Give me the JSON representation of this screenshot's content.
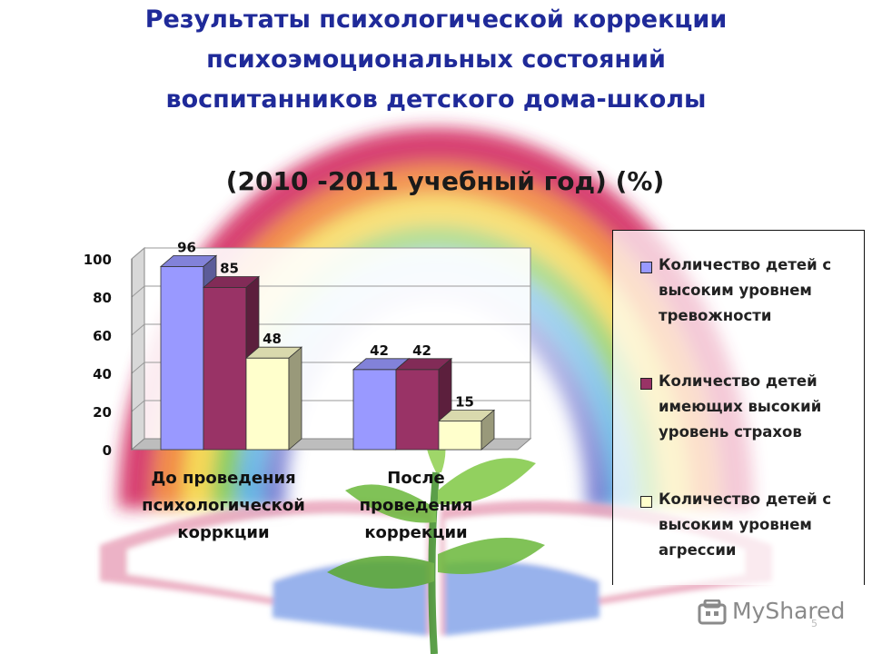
{
  "title_lines": [
    "Результаты психологической коррекции",
    "психоэмоциональных состояний",
    "воспитанников детского дома-школы"
  ],
  "subtitle": "(2010 -2011 учебный год) (%)",
  "chart_data": {
    "type": "bar",
    "categories": [
      "До проведения психологической коррекции",
      "После проведения коррекции"
    ],
    "category_labels": [
      "До проведения\nпсихологической\nкорркции",
      "После\nпроведения\nкоррекции"
    ],
    "series": [
      {
        "name": "Количество детей с высоким уровнем тревожности",
        "values": [
          96,
          42
        ],
        "color": "#9999ff"
      },
      {
        "name": "Количество детей имеющих высокий уровень страхов",
        "values": [
          85,
          42
        ],
        "color": "#993366"
      },
      {
        "name": "Количество  детей с высоким уровнем агрессии",
        "values": [
          48,
          15
        ],
        "color": "#ffffcc"
      }
    ],
    "y_ticks": [
      "0",
      "20",
      "40",
      "60",
      "80",
      "100"
    ],
    "ylim": [
      0,
      100
    ],
    "grid": true,
    "legend_position": "right",
    "data_labels": true
  },
  "legend": {
    "items": [
      {
        "lines": [
          "Количество детей с",
          "высоким уровнем",
          "тревожности"
        ]
      },
      {
        "lines": [
          "Количество детей",
          "имеющих высокий",
          "уровень страхов"
        ]
      },
      {
        "lines": [
          "Количество  детей с",
          "высоким уровнем",
          "агрессии"
        ]
      }
    ]
  },
  "watermark": "MyShared",
  "page_number": "5",
  "colors": {
    "title": "#1f2a99",
    "series1": "#9999ff",
    "series2": "#993366",
    "series3": "#ffffcc"
  }
}
